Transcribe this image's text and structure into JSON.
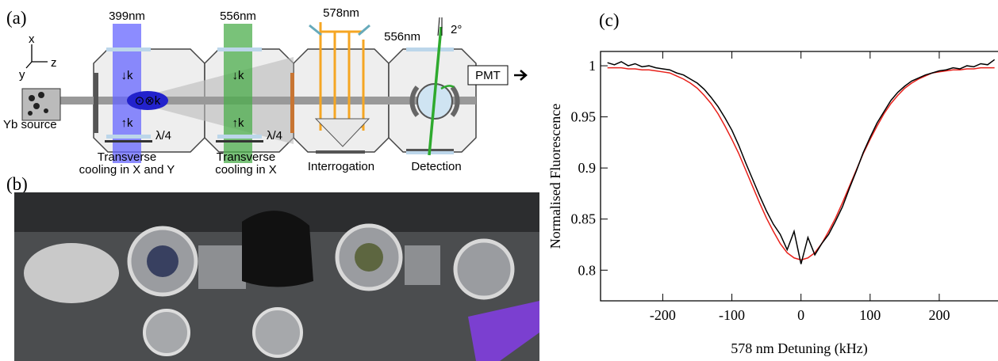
{
  "panels": {
    "a": {
      "label": "(a)",
      "wavelengths": [
        "399nm",
        "556nm",
        "578nm",
        "556nm"
      ],
      "angle": "2°",
      "axes": [
        "x",
        "y",
        "z"
      ],
      "source": "Yb source",
      "k_labels": [
        "↓k",
        "⊙⊗k",
        "↑k",
        "↓k",
        "↑k"
      ],
      "waveplates": [
        "λ/4",
        "λ/4"
      ],
      "detector": "PMT",
      "stages": [
        [
          "Transverse",
          "cooling in X and Y"
        ],
        [
          "Transverse",
          "cooling in X"
        ],
        [
          "Interrogation"
        ],
        [
          "Detection"
        ]
      ]
    },
    "b": {
      "label": "(b)"
    },
    "c": {
      "label": "(c)"
    }
  },
  "chart_data": {
    "type": "line",
    "xlabel": "578 nm Detuning (kHz)",
    "ylabel": "Normalised Fluorescence",
    "x": [
      -280,
      -270,
      -260,
      -250,
      -240,
      -230,
      -220,
      -210,
      -200,
      -190,
      -180,
      -170,
      -160,
      -150,
      -140,
      -130,
      -120,
      -110,
      -100,
      -90,
      -80,
      -70,
      -60,
      -50,
      -40,
      -30,
      -20,
      -10,
      0,
      10,
      20,
      30,
      40,
      50,
      60,
      70,
      80,
      90,
      100,
      110,
      120,
      130,
      140,
      150,
      160,
      170,
      180,
      190,
      200,
      210,
      220,
      230,
      240,
      250,
      260,
      270,
      280
    ],
    "series": [
      {
        "color": "#000000",
        "values": [
          1.003,
          1.001,
          1.004,
          1.0,
          1.002,
          0.999,
          1.0,
          0.998,
          0.997,
          0.996,
          0.993,
          0.991,
          0.987,
          0.983,
          0.977,
          0.969,
          0.96,
          0.949,
          0.937,
          0.922,
          0.905,
          0.889,
          0.873,
          0.858,
          0.845,
          0.835,
          0.82,
          0.838,
          0.806,
          0.832,
          0.815,
          0.826,
          0.835,
          0.848,
          0.862,
          0.88,
          0.897,
          0.915,
          0.93,
          0.944,
          0.955,
          0.966,
          0.974,
          0.98,
          0.985,
          0.988,
          0.991,
          0.993,
          0.995,
          0.996,
          0.998,
          0.997,
          1.0,
          0.999,
          1.002,
          1.001,
          1.006
        ]
      },
      {
        "color": "#e8201a",
        "values": [
          0.998,
          0.998,
          0.998,
          0.997,
          0.997,
          0.996,
          0.996,
          0.995,
          0.994,
          0.993,
          0.99,
          0.987,
          0.983,
          0.978,
          0.971,
          0.963,
          0.953,
          0.941,
          0.928,
          0.914,
          0.898,
          0.882,
          0.866,
          0.851,
          0.838,
          0.826,
          0.817,
          0.812,
          0.81,
          0.812,
          0.817,
          0.826,
          0.838,
          0.851,
          0.866,
          0.882,
          0.898,
          0.914,
          0.928,
          0.941,
          0.953,
          0.963,
          0.971,
          0.978,
          0.983,
          0.987,
          0.99,
          0.993,
          0.994,
          0.995,
          0.996,
          0.996,
          0.997,
          0.997,
          0.998,
          0.998,
          0.998
        ]
      }
    ],
    "xlim": [
      -290,
      285
    ],
    "ylim": [
      0.77,
      1.014
    ],
    "xticks": [
      -200,
      -100,
      0,
      100,
      200
    ],
    "yticks": [
      0.8,
      0.85,
      0.9,
      0.95,
      1
    ]
  }
}
